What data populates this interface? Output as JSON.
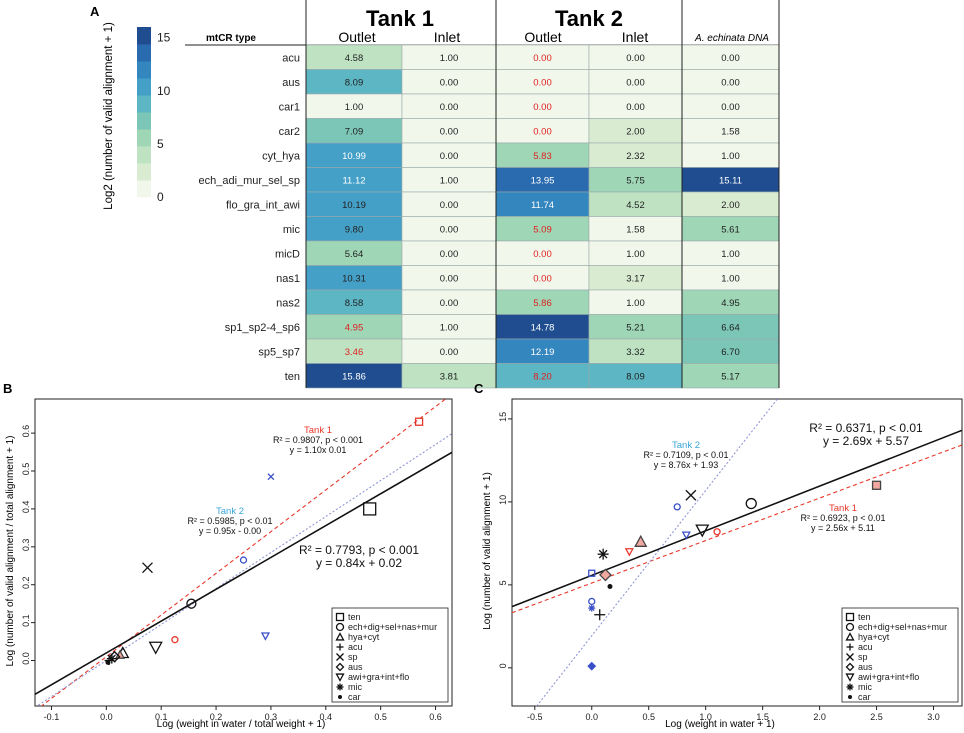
{
  "panel_labels": {
    "a": "A",
    "b": "B",
    "c": "C"
  },
  "colors": {
    "tank1": "#e8372a",
    "tank2": "#3aa5d8",
    "overall": "#111111",
    "red_value": "#e02020",
    "blue_point": "#3a4fc8",
    "scale": [
      "#f2f7ec",
      "#d9ecd2",
      "#bfe3c2",
      "#9fd6b6",
      "#7cc6b8",
      "#5cb6c4",
      "#45a0c8",
      "#3486bf",
      "#2a6aae",
      "#1f4d8f"
    ]
  },
  "chart_data": [
    {
      "type": "heatmap",
      "panel": "A",
      "title": "",
      "groups": [
        {
          "label": "Tank 1",
          "columns": [
            "Outlet",
            "Inlet"
          ]
        },
        {
          "label": "Tank 2",
          "columns": [
            "Outlet",
            "Inlet"
          ]
        },
        {
          "label": "A. echinata DNA",
          "columns": [
            "A. echinata DNA"
          ]
        }
      ],
      "row_header": "mtCR type",
      "colorbar": {
        "label": "Log2 (number of valid alignment + 1)",
        "ticks": [
          "15",
          "10",
          "5",
          "0"
        ],
        "min": 0,
        "max": 16
      },
      "rows": [
        {
          "name": "acu",
          "values": [
            "4.58",
            "1.00",
            "0.00",
            "0.00",
            "0.00"
          ],
          "red": [
            false,
            false,
            true,
            false,
            false
          ]
        },
        {
          "name": "aus",
          "values": [
            "8.09",
            "0.00",
            "0.00",
            "0.00",
            "0.00"
          ],
          "red": [
            false,
            false,
            true,
            false,
            false
          ]
        },
        {
          "name": "car1",
          "values": [
            "1.00",
            "0.00",
            "0.00",
            "0.00",
            "0.00"
          ],
          "red": [
            false,
            false,
            true,
            false,
            false
          ]
        },
        {
          "name": "car2",
          "values": [
            "7.09",
            "0.00",
            "0.00",
            "2.00",
            "1.58"
          ],
          "red": [
            false,
            false,
            true,
            false,
            false
          ]
        },
        {
          "name": "cyt_hya",
          "values": [
            "10.99",
            "0.00",
            "5.83",
            "2.32",
            "1.00"
          ],
          "red": [
            false,
            false,
            true,
            false,
            false
          ]
        },
        {
          "name": "ech_adi_mur_sel_sp",
          "values": [
            "11.12",
            "1.00",
            "13.95",
            "5.75",
            "15.11"
          ],
          "red": [
            false,
            false,
            false,
            false,
            false
          ]
        },
        {
          "name": "flo_gra_int_awi",
          "values": [
            "10.19",
            "0.00",
            "11.74",
            "4.52",
            "2.00"
          ],
          "red": [
            false,
            false,
            false,
            false,
            false
          ]
        },
        {
          "name": "mic",
          "values": [
            "9.80",
            "0.00",
            "5.09",
            "1.58",
            "5.61"
          ],
          "red": [
            false,
            false,
            true,
            false,
            false
          ]
        },
        {
          "name": "micD",
          "values": [
            "5.64",
            "0.00",
            "0.00",
            "1.00",
            "1.00"
          ],
          "red": [
            false,
            false,
            true,
            false,
            false
          ]
        },
        {
          "name": "nas1",
          "values": [
            "10.31",
            "0.00",
            "0.00",
            "3.17",
            "1.00"
          ],
          "red": [
            false,
            false,
            true,
            false,
            false
          ]
        },
        {
          "name": "nas2",
          "values": [
            "8.58",
            "0.00",
            "5.86",
            "1.00",
            "4.95"
          ],
          "red": [
            false,
            false,
            true,
            false,
            false
          ]
        },
        {
          "name": "sp1_sp2-4_sp6",
          "values": [
            "4.95",
            "1.00",
            "14.78",
            "5.21",
            "6.64"
          ],
          "red": [
            true,
            false,
            false,
            false,
            false
          ]
        },
        {
          "name": "sp5_sp7",
          "values": [
            "3.46",
            "0.00",
            "12.19",
            "3.32",
            "6.70"
          ],
          "red": [
            true,
            false,
            false,
            false,
            false
          ]
        },
        {
          "name": "ten",
          "values": [
            "15.86",
            "3.81",
            "8.20",
            "8.09",
            "5.17"
          ],
          "red": [
            false,
            false,
            true,
            false,
            false
          ]
        }
      ]
    },
    {
      "type": "scatter",
      "panel": "B",
      "xlabel": "Log (weight in water / total weight + 1)",
      "ylabel": "Log (number of valid alignment / total alignment + 1)",
      "xlim": [
        -0.13,
        0.63
      ],
      "ylim": [
        -0.12,
        0.69
      ],
      "xticks": [
        -0.1,
        0.0,
        0.1,
        0.2,
        0.3,
        0.4,
        0.5,
        0.6
      ],
      "xtick_labels": [
        "-0.1",
        "0.0",
        "0.1",
        "0.2",
        "0.3",
        "0.4",
        "0.5",
        "0.6"
      ],
      "yticks": [
        0.0,
        0.1,
        0.2,
        0.3,
        0.4,
        0.5,
        0.6
      ],
      "ytick_labels": [
        "0.0",
        "0.1",
        "0.2",
        "0.3",
        "0.4",
        "0.5",
        "0.6"
      ],
      "fits": [
        {
          "name": "Tank 1",
          "slope": 1.1,
          "intercept": 0.01,
          "color": "#e8372a",
          "dash": "4,3",
          "label": "Tank 1",
          "r2": "R² = 0.9807, p < 0.001",
          "eq": "y = 1.10x 0.01"
        },
        {
          "name": "Tank 2",
          "slope": 0.95,
          "intercept": 0.0,
          "color": "#8f97d6",
          "dash": "2,2",
          "label": "Tank 2",
          "r2": "R² = 0.5985, p < 0.01",
          "eq": "y = 0.95x - 0.00"
        },
        {
          "name": "Overall",
          "slope": 0.84,
          "intercept": 0.02,
          "color": "#111111",
          "dash": "",
          "label": "",
          "r2": "R² = 0.7793, p < 0.001",
          "eq": "y = 0.84x + 0.02"
        }
      ],
      "points": [
        {
          "x": 0.48,
          "y": 0.4,
          "m": "square",
          "g": "all",
          "s": 12
        },
        {
          "x": 0.57,
          "y": 0.63,
          "m": "square",
          "g": "t1",
          "s": 7
        },
        {
          "x": 0.155,
          "y": 0.15,
          "m": "circle",
          "g": "all",
          "s": 9
        },
        {
          "x": 0.125,
          "y": 0.055,
          "m": "circle",
          "g": "t1",
          "s": 6
        },
        {
          "x": 0.25,
          "y": 0.265,
          "m": "circle",
          "g": "t2",
          "s": 6
        },
        {
          "x": 0.075,
          "y": 0.245,
          "m": "x",
          "g": "all",
          "s": 10
        },
        {
          "x": 0.3,
          "y": 0.485,
          "m": "x",
          "g": "t2",
          "s": 6
        },
        {
          "x": 0.09,
          "y": 0.035,
          "m": "tri-down",
          "g": "all",
          "s": 12
        },
        {
          "x": 0.29,
          "y": 0.065,
          "m": "tri-down",
          "g": "t2",
          "s": 7
        },
        {
          "x": 0.03,
          "y": 0.02,
          "m": "triangle",
          "g": "all",
          "s": 11
        },
        {
          "x": 0.025,
          "y": 0.015,
          "m": "triangle",
          "g": "t1f",
          "s": 8
        },
        {
          "x": 0.015,
          "y": 0.01,
          "m": "diamond",
          "g": "all",
          "s": 10
        },
        {
          "x": 0.01,
          "y": 0.005,
          "m": "star",
          "g": "all",
          "s": 10
        },
        {
          "x": 0.005,
          "y": 0.0,
          "m": "plus",
          "g": "all",
          "s": 9
        },
        {
          "x": 0.003,
          "y": -0.005,
          "m": "dot",
          "g": "all",
          "s": 4
        }
      ],
      "legend": [
        "ten",
        "ech+dig+sel+nas+mur",
        "hya+cyt",
        "acu",
        "sp",
        "aus",
        "awi+gra+int+flo",
        "mic",
        "car"
      ]
    },
    {
      "type": "scatter",
      "panel": "C",
      "xlabel": "Log (weight in water + 1)",
      "ylabel": "Log (number of valid alignment + 1)",
      "xlim": [
        -0.7,
        3.25
      ],
      "ylim": [
        -2.3,
        16.2
      ],
      "xticks": [
        -0.5,
        0.0,
        0.5,
        1.0,
        1.5,
        2.0,
        2.5,
        3.0
      ],
      "xtick_labels": [
        "-0.5",
        "0.0",
        "0.5",
        "1.0",
        "1.5",
        "2.0",
        "2.5",
        "3.0"
      ],
      "yticks": [
        0,
        5,
        10,
        15
      ],
      "ytick_labels": [
        "0",
        "5",
        "10",
        "15"
      ],
      "fits": [
        {
          "name": "Tank 1",
          "slope": 2.56,
          "intercept": 5.11,
          "color": "#e8372a",
          "dash": "4,3",
          "label": "Tank 1",
          "r2": "R² = 0.6923, p < 0.01",
          "eq": "y = 2.56x + 5.11"
        },
        {
          "name": "Tank 2",
          "slope": 8.76,
          "intercept": 1.93,
          "color": "#8f97d6",
          "dash": "2,2",
          "label": "Tank 2",
          "r2": "R² = 0.7109, p < 0.01",
          "eq": "y = 8.76x + 1.93"
        },
        {
          "name": "Overall",
          "slope": 2.69,
          "intercept": 5.57,
          "color": "#111111",
          "dash": "",
          "label": "",
          "r2": "R² = 0.6371, p < 0.01",
          "eq": "y = 2.69x + 5.57"
        }
      ],
      "points": [
        {
          "x": 2.5,
          "y": 11.0,
          "m": "square",
          "g": "t1f",
          "s": 8
        },
        {
          "x": 1.4,
          "y": 9.9,
          "m": "circle",
          "g": "all",
          "s": 10
        },
        {
          "x": 1.1,
          "y": 8.2,
          "m": "circle",
          "g": "t1",
          "s": 6
        },
        {
          "x": 0.75,
          "y": 9.7,
          "m": "circle",
          "g": "t2",
          "s": 6
        },
        {
          "x": 0.0,
          "y": 4.0,
          "m": "circle",
          "g": "t2",
          "s": 6
        },
        {
          "x": 0.87,
          "y": 10.4,
          "m": "x",
          "g": "all",
          "s": 10
        },
        {
          "x": 0.07,
          "y": 3.2,
          "m": "plus",
          "g": "all",
          "s": 11
        },
        {
          "x": 0.97,
          "y": 8.3,
          "m": "tri-down",
          "g": "all",
          "s": 12
        },
        {
          "x": 0.83,
          "y": 8.0,
          "m": "tri-down",
          "g": "t2",
          "s": 7
        },
        {
          "x": 0.33,
          "y": 7.0,
          "m": "tri-down",
          "g": "t1",
          "s": 7
        },
        {
          "x": 0.43,
          "y": 7.6,
          "m": "triangle",
          "g": "t1f",
          "s": 11
        },
        {
          "x": 0.12,
          "y": 5.6,
          "m": "diamond",
          "g": "t1f",
          "s": 11
        },
        {
          "x": 0.0,
          "y": 0.1,
          "m": "diamond",
          "g": "t2f",
          "s": 7
        },
        {
          "x": 0.1,
          "y": 6.85,
          "m": "star",
          "g": "all",
          "s": 11
        },
        {
          "x": 0.0,
          "y": 3.6,
          "m": "star",
          "g": "t2",
          "s": 7
        },
        {
          "x": 0.0,
          "y": 5.7,
          "m": "square",
          "g": "t2",
          "s": 6
        },
        {
          "x": 0.16,
          "y": 4.9,
          "m": "dot",
          "g": "all",
          "s": 4
        }
      ],
      "legend": [
        "ten",
        "ech+dig+sel+nas+mur",
        "hya+cyt",
        "acu",
        "sp",
        "aus",
        "awi+gra+int+flo",
        "mic",
        "car"
      ]
    }
  ]
}
